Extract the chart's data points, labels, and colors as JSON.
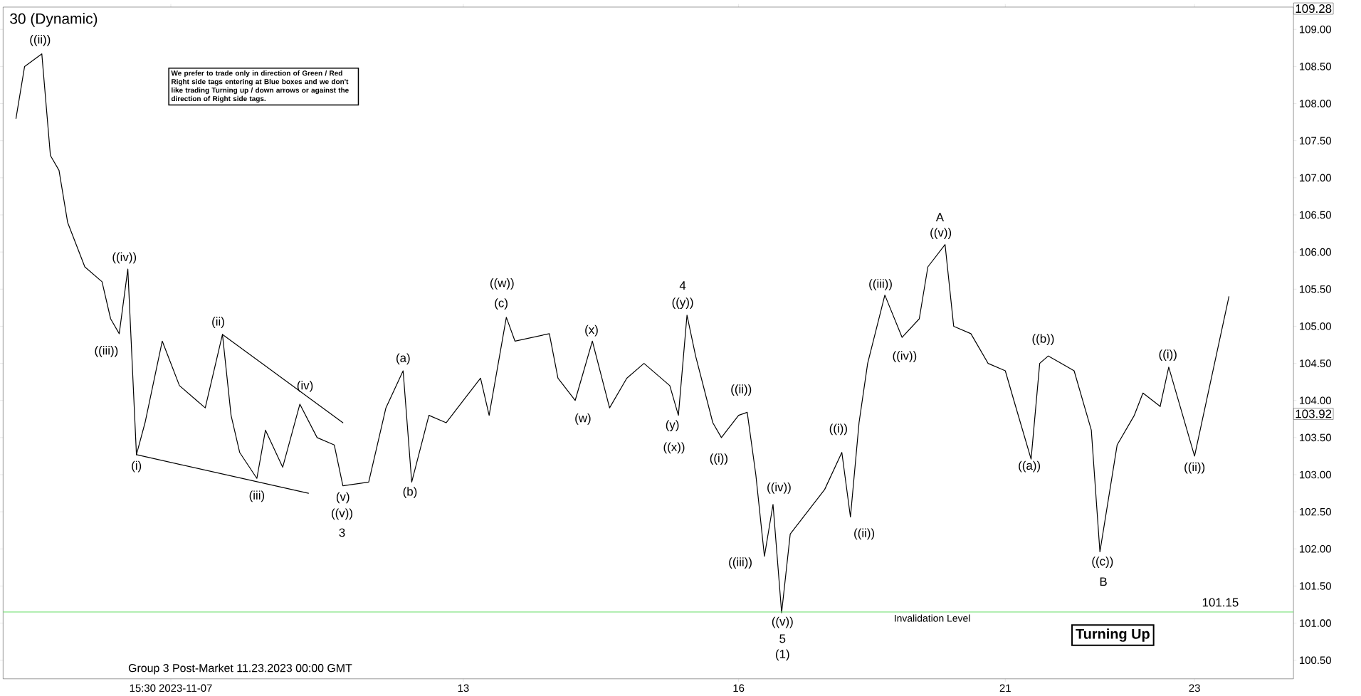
{
  "chart_data": {
    "type": "line",
    "title": "30 (Dynamic)",
    "categories": [
      null,
      null,
      null,
      null,
      null,
      null,
      null,
      null,
      null,
      null,
      null,
      null,
      null,
      null,
      null,
      null,
      null,
      null,
      null,
      "15:30 2023-11-07",
      null,
      null,
      null,
      null,
      null,
      null,
      null,
      null,
      null,
      null,
      null,
      null,
      null,
      null,
      null,
      null,
      null,
      null,
      null,
      null,
      null,
      null,
      null,
      null,
      null,
      null,
      null,
      null,
      null,
      null,
      null,
      null,
      null,
      "13",
      null,
      null,
      null,
      null,
      null,
      null,
      null,
      null,
      null,
      null,
      null,
      null,
      null,
      null,
      null,
      null,
      null,
      null,
      null,
      null,
      null,
      null,
      null,
      null,
      null,
      null,
      null,
      null,
      null,
      null,
      null,
      "16",
      null,
      null,
      null,
      null,
      null,
      null,
      null,
      null,
      null,
      null,
      null,
      null,
      null,
      null,
      null,
      null,
      null,
      null,
      null,
      null,
      null,
      null,
      null,
      null,
      null,
      null,
      null,
      null,
      null,
      null,
      "21",
      null,
      null,
      null,
      null,
      null,
      null,
      null,
      null,
      null,
      null,
      null,
      null,
      null,
      null,
      null,
      null,
      null,
      null,
      null,
      null,
      null,
      "23",
      null,
      null,
      null,
      null,
      null,
      null,
      null,
      null,
      null,
      null,
      null
    ],
    "ylim": [
      100.25,
      109.3
    ],
    "yticks": [
      {
        "value": 100.5,
        "label": "100.50"
      },
      {
        "value": 101.0,
        "label": "101.00"
      },
      {
        "value": 101.5,
        "label": "101.50"
      },
      {
        "value": 102.0,
        "label": "102.00"
      },
      {
        "value": 102.5,
        "label": "102.50"
      },
      {
        "value": 103.0,
        "label": "103.00"
      },
      {
        "value": 103.5,
        "label": "103.50"
      },
      {
        "value": 104.0,
        "label": "104.00"
      },
      {
        "value": 104.5,
        "label": "104.50"
      },
      {
        "value": 105.0,
        "label": "105.00"
      },
      {
        "value": 105.5,
        "label": "105.50"
      },
      {
        "value": 106.0,
        "label": "106.00"
      },
      {
        "value": 106.5,
        "label": "106.50"
      },
      {
        "value": 107.0,
        "label": "107.00"
      },
      {
        "value": 107.5,
        "label": "107.50"
      },
      {
        "value": 108.0,
        "label": "108.00"
      },
      {
        "value": 108.5,
        "label": "108.50"
      },
      {
        "value": 109.0,
        "label": "109.00"
      }
    ],
    "series": [
      {
        "color": "#000000",
        "values": [
          null,
          107.8,
          108.5,
          null,
          108.67,
          107.3,
          107.1,
          106.4,
          null,
          105.8,
          null,
          105.6,
          105.1,
          104.9,
          105.77,
          103.27,
          103.7,
          null,
          104.8,
          null,
          104.2,
          null,
          104.0,
          103.9,
          null,
          104.89,
          103.8,
          103.3,
          null,
          102.95,
          103.6,
          null,
          103.1,
          null,
          103.95,
          null,
          103.5,
          null,
          103.4,
          102.85,
          null,
          null,
          102.9,
          103.4,
          103.9,
          null,
          104.4,
          102.9,
          null,
          103.8,
          null,
          103.7,
          null,
          104.0,
          null,
          104.3,
          103.8,
          null,
          105.12,
          104.8,
          null,
          null,
          null,
          104.9,
          104.3,
          null,
          104.0,
          null,
          104.8,
          null,
          103.9,
          null,
          104.3,
          null,
          104.5,
          null,
          null,
          104.2,
          103.8,
          105.15,
          104.6,
          null,
          103.7,
          103.5,
          null,
          103.8,
          103.84,
          103.0,
          101.9,
          102.6,
          101.14,
          102.2,
          null,
          102.5,
          null,
          102.8,
          null,
          103.3,
          102.43,
          103.7,
          104.5,
          null,
          105.42,
          null,
          104.85,
          null,
          105.1,
          105.8,
          null,
          106.1,
          105.0,
          null,
          104.9,
          null,
          104.5,
          null,
          104.4,
          104.0,
          null,
          103.21,
          104.5,
          104.6,
          null,
          null,
          104.4,
          null,
          103.6,
          101.96,
          null,
          103.4,
          null,
          103.8,
          104.1,
          null,
          103.92,
          null,
          null,
          null,
          null,
          null,
          null,
          null,
          null,
          null,
          null,
          null,
          null,
          null,
          null,
          null
        ]
      },
      {
        "color": "#000000",
        "values": [
          null,
          null,
          null,
          null,
          null,
          null,
          null,
          null,
          null,
          null,
          null,
          null,
          null,
          null,
          null,
          null,
          null,
          null,
          null,
          null,
          null,
          null,
          null,
          null,
          null,
          null,
          null,
          null,
          null,
          null,
          null,
          null,
          null,
          null,
          null,
          null,
          null,
          null,
          null,
          null,
          null,
          null,
          null,
          null,
          null,
          null,
          null,
          null,
          null,
          null,
          null,
          null,
          null,
          null,
          null,
          null,
          null,
          null,
          null,
          null,
          null,
          null,
          null,
          null,
          null,
          null,
          null,
          null,
          null,
          null,
          null,
          null,
          null,
          null,
          null,
          null,
          null,
          null,
          null,
          null,
          null,
          null,
          null,
          null,
          null,
          null,
          null,
          null,
          null,
          null,
          null,
          null,
          null,
          null,
          null,
          null,
          null,
          null,
          null,
          null,
          null,
          null,
          null,
          null,
          null,
          null,
          null,
          null,
          null,
          null,
          null,
          null,
          null,
          null,
          null,
          null,
          null,
          null,
          null,
          null,
          null,
          null,
          null,
          null,
          null,
          null,
          null,
          null,
          null,
          null,
          null,
          null,
          null,
          null,
          103.92,
          104.45,
          null,
          null,
          103.25,
          null,
          null,
          null,
          105.4,
          null,
          null,
          null,
          null,
          null,
          null,
          null
        ]
      },
      {
        "color": "#000000",
        "values": [
          null,
          null,
          null,
          null,
          null,
          null,
          null,
          null,
          null,
          null,
          null,
          null,
          null,
          null,
          null,
          103.27,
          null,
          null,
          null,
          null,
          null,
          null,
          null,
          null,
          null,
          null,
          null,
          null,
          null,
          null,
          null,
          null,
          null,
          null,
          null,
          102.75,
          null,
          null,
          null,
          null,
          null,
          null,
          null,
          null,
          null,
          null,
          null,
          null,
          null,
          null,
          null,
          null,
          null,
          null,
          null,
          null,
          null,
          null,
          null,
          null,
          null,
          null,
          null,
          null,
          null,
          null,
          null,
          null,
          null,
          null,
          null,
          null,
          null,
          null,
          null,
          null,
          null,
          null,
          null,
          null,
          null,
          null,
          null,
          null,
          null,
          null,
          null,
          null,
          null,
          null,
          null,
          null,
          null,
          null,
          null,
          null,
          null,
          null,
          null,
          null,
          null,
          null,
          null,
          null,
          null,
          null,
          null,
          null,
          null,
          null,
          null,
          null,
          null,
          null,
          null,
          null,
          null,
          null,
          null,
          null,
          null,
          null,
          null,
          null,
          null,
          null,
          null,
          null,
          null,
          null,
          null,
          null,
          null,
          null,
          null,
          null,
          null,
          null,
          null,
          null,
          null,
          null,
          null,
          null,
          null,
          null,
          null,
          null,
          null,
          null
        ]
      },
      {
        "color": "#000000",
        "values": [
          null,
          null,
          null,
          null,
          null,
          null,
          null,
          null,
          null,
          null,
          null,
          null,
          null,
          null,
          null,
          null,
          null,
          null,
          null,
          null,
          null,
          null,
          null,
          null,
          null,
          104.89,
          null,
          null,
          null,
          null,
          null,
          null,
          null,
          null,
          null,
          null,
          null,
          null,
          null,
          103.7,
          null,
          null,
          null,
          null,
          null,
          null,
          null,
          null,
          null,
          null,
          null,
          null,
          null,
          null,
          null,
          null,
          null,
          null,
          null,
          null,
          null,
          null,
          null,
          null,
          null,
          null,
          null,
          null,
          null,
          null,
          null,
          null,
          null,
          null,
          null,
          null,
          null,
          null,
          null,
          null,
          null,
          null,
          null,
          null,
          null,
          null,
          null,
          null,
          null,
          null,
          null,
          null,
          null,
          null,
          null,
          null,
          null,
          null,
          null,
          null,
          null,
          null,
          null,
          null,
          null,
          null,
          null,
          null,
          null,
          null,
          null,
          null,
          null,
          null,
          null,
          null,
          null,
          null,
          null,
          null,
          null,
          null,
          null,
          null,
          null,
          null,
          null,
          null,
          null,
          null,
          null,
          null,
          null,
          null,
          null,
          null,
          null,
          null,
          null,
          null,
          null,
          null,
          null,
          null,
          null,
          null,
          null,
          null,
          null,
          null
        ]
      }
    ],
    "ref_lines": [
      {
        "axis": "y",
        "value": 101.15,
        "label": "Invalidation Level",
        "color": "#66dd66"
      }
    ],
    "annotations": [
      "We prefer to trade only in direction of Green / Red Right side tags entering at Blue boxes and we don't like trading Turning up / down arrows or against the direction of Right side tags.",
      "Group 3 Post-Market 11.23.2023 00:00 GMT",
      "Turning Up",
      "101.15",
      "103.92",
      "109.28",
      "((ii))",
      "((iv))",
      "((iii))",
      "(i)",
      "(ii)",
      "(iii)",
      "(iv)",
      "(v)",
      "((v))",
      "3",
      "(a)",
      "(b)",
      "((w))",
      "(c)",
      "(x)",
      "(w)",
      "4",
      "((y))",
      "(y)",
      "((x))",
      "((ii))",
      "((i))",
      "((iv))",
      "((iii))",
      "((v))",
      "5",
      "(1)",
      "((i))",
      "((ii))",
      "((iii))",
      "((iv))",
      "A",
      "((v))",
      "((b))",
      "((a))",
      "((c))",
      "B",
      "((i))",
      "((ii))"
    ]
  }
}
